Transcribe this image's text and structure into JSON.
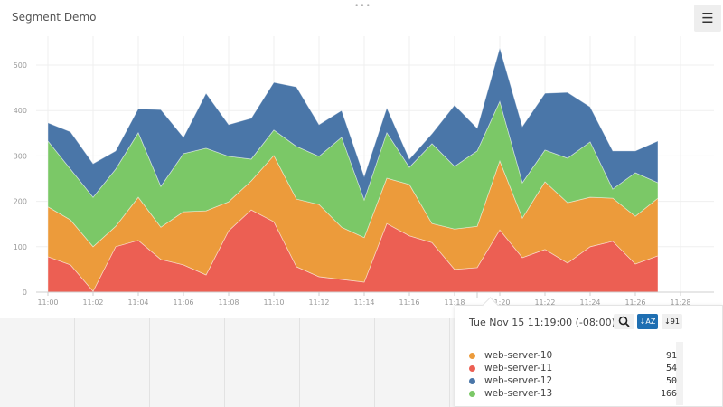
{
  "header": {
    "title": "Segment Demo",
    "menu_icon": "hamburger-icon",
    "drag_handle": "•••"
  },
  "colors": {
    "web-server-10": "#ec9b3b",
    "web-server-11": "#ec5f53",
    "web-server-12": "#4a76a8",
    "web-server-13": "#7bc867"
  },
  "chart_data": {
    "type": "area",
    "stacked": true,
    "x": [
      "11:00",
      "11:01",
      "11:02",
      "11:03",
      "11:04",
      "11:05",
      "11:06",
      "11:07",
      "11:08",
      "11:09",
      "11:10",
      "11:11",
      "11:12",
      "11:13",
      "11:14",
      "11:15",
      "11:16",
      "11:17",
      "11:18",
      "11:19",
      "11:20",
      "11:21",
      "11:22",
      "11:23",
      "11:24",
      "11:25",
      "11:26",
      "11:27"
    ],
    "x_ticks": [
      "11:00",
      "11:02",
      "11:04",
      "11:06",
      "11:08",
      "11:10",
      "11:12",
      "11:14",
      "11:16",
      "11:18",
      "11:20",
      "11:22",
      "11:24",
      "11:26",
      "11:28"
    ],
    "y_ticks": [
      0,
      100,
      200,
      300,
      400,
      500
    ],
    "ylim": [
      0,
      550
    ],
    "grid": true,
    "series": [
      {
        "name": "web-server-11",
        "values": [
          78,
          60,
          2,
          100,
          114,
          72,
          60,
          38,
          135,
          181,
          155,
          56,
          34,
          28,
          22,
          151,
          124,
          109,
          50,
          54,
          137,
          76,
          94,
          64,
          100,
          112,
          62,
          80
        ]
      },
      {
        "name": "web-server-10",
        "values": [
          110,
          99,
          98,
          45,
          95,
          71,
          117,
          141,
          64,
          64,
          146,
          149,
          159,
          115,
          98,
          100,
          113,
          42,
          89,
          91,
          152,
          87,
          149,
          133,
          109,
          95,
          105,
          127
        ]
      },
      {
        "name": "web-server-13",
        "values": [
          145,
          112,
          109,
          126,
          142,
          90,
          128,
          138,
          100,
          48,
          56,
          116,
          106,
          198,
          83,
          100,
          38,
          176,
          138,
          166,
          131,
          78,
          70,
          98,
          122,
          20,
          96,
          34
        ]
      },
      {
        "name": "web-server-12",
        "values": [
          40,
          82,
          74,
          40,
          53,
          169,
          36,
          121,
          70,
          90,
          105,
          131,
          70,
          59,
          52,
          55,
          18,
          22,
          135,
          50,
          118,
          124,
          125,
          145,
          77,
          84,
          48,
          92
        ]
      }
    ]
  },
  "tooltip": {
    "time": "Tue Nov 15 11:19:00 (-08:00)",
    "search_icon": "search-icon",
    "sort_alpha_label": "↓AZ",
    "sort_numeric_label": "↓91",
    "rows": [
      {
        "name": "web-server-10",
        "value": "91",
        "color": "#ec9b3b"
      },
      {
        "name": "web-server-11",
        "value": "54",
        "color": "#ec5f53"
      },
      {
        "name": "web-server-12",
        "value": "50",
        "color": "#4a76a8"
      },
      {
        "name": "web-server-13",
        "value": "166",
        "color": "#7bc867"
      }
    ]
  }
}
